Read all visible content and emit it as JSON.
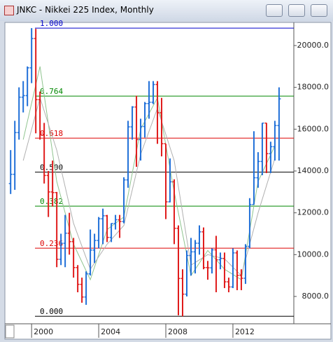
{
  "chart_data": {
    "type": "ohlc",
    "title": "JNKC - Nikkei 225 Index, Monthly",
    "x": [
      1998.75,
      1999.0,
      1999.25,
      1999.5,
      1999.75,
      2000.0,
      2000.25,
      2000.5,
      2000.75,
      2001.0,
      2001.25,
      2001.5,
      2001.75,
      2002.0,
      2002.25,
      2002.5,
      2002.75,
      2003.0,
      2003.25,
      2003.5,
      2003.75,
      2004.0,
      2004.25,
      2004.5,
      2004.75,
      2005.0,
      2005.25,
      2005.5,
      2005.75,
      2006.0,
      2006.25,
      2006.5,
      2006.75,
      2007.0,
      2007.25,
      2007.5,
      2007.75,
      2008.0,
      2008.25,
      2008.5,
      2008.75,
      2009.0,
      2009.25,
      2009.5,
      2009.75,
      2010.0,
      2010.25,
      2010.5,
      2010.75,
      2011.0,
      2011.25,
      2011.5,
      2011.75,
      2012.0,
      2012.25,
      2012.5,
      2012.75,
      2013.0,
      2013.25,
      2013.5,
      2013.75,
      2014.0,
      2014.25,
      2014.5,
      2014.75
    ],
    "open": [
      13400,
      13842,
      15837,
      17530,
      17605,
      18934,
      20337,
      17411,
      15747,
      13786,
      12999,
      12969,
      9775,
      10543,
      11025,
      10622,
      9383,
      8579,
      7973,
      9083,
      10219,
      10677,
      11715,
      11859,
      10824,
      11489,
      11669,
      11584,
      13574,
      16111,
      17060,
      15505,
      16128,
      17226,
      17288,
      18138,
      16786,
      15308,
      12526,
      13482,
      11260,
      8860,
      8110,
      9958,
      10133,
      10546,
      11090,
      9383,
      9369,
      10229,
      9755,
      9816,
      8700,
      8455,
      10083,
      9007,
      8870,
      10395,
      12398,
      13677,
      14456,
      16291,
      14828,
      15162,
      16174
    ],
    "high": [
      15000,
      16400,
      18000,
      18300,
      19000,
      20833,
      20800,
      17800,
      16300,
      14000,
      14500,
      13000,
      11000,
      11900,
      12000,
      10800,
      9500,
      8900,
      9200,
      11200,
      11000,
      11800,
      12200,
      11900,
      11500,
      11900,
      11900,
      13700,
      16400,
      17100,
      17600,
      16500,
      17300,
      18300,
      18300,
      18300,
      17500,
      15300,
      14600,
      13600,
      11400,
      9300,
      10200,
      10800,
      10700,
      11400,
      11300,
      9700,
      10300,
      10900,
      10100,
      10100,
      8900,
      10300,
      10200,
      9300,
      10500,
      12700,
      15900,
      14900,
      16300,
      16300,
      15400,
      16400,
      18000
    ],
    "low": [
      12900,
      13100,
      15500,
      16800,
      17100,
      18200,
      15800,
      15500,
      13400,
      11800,
      12300,
      9400,
      9500,
      9400,
      10000,
      8900,
      8200,
      7700,
      7600,
      9000,
      9600,
      10300,
      10500,
      10600,
      10600,
      11200,
      10800,
      11500,
      13200,
      15500,
      14200,
      14500,
      15600,
      16500,
      17200,
      15300,
      14700,
      11700,
      12500,
      10500,
      7100,
      7055,
      8000,
      9000,
      9100,
      10000,
      9300,
      8800,
      9100,
      8200,
      9300,
      8400,
      8200,
      8400,
      8300,
      8300,
      8600,
      10300,
      12400,
      13200,
      13800,
      13900,
      13900,
      14500,
      14500
    ],
    "close": [
      13842,
      15837,
      17530,
      17605,
      18934,
      20337,
      17411,
      15747,
      13786,
      12999,
      12969,
      9775,
      10543,
      11025,
      10622,
      9383,
      8579,
      7973,
      9083,
      10219,
      10677,
      11715,
      11859,
      10824,
      11489,
      11669,
      11584,
      13574,
      16111,
      17060,
      15505,
      16128,
      17226,
      17288,
      18138,
      16786,
      15308,
      12526,
      13482,
      11260,
      8860,
      8110,
      9958,
      10133,
      10546,
      11090,
      9383,
      9369,
      10229,
      9755,
      9816,
      8700,
      8455,
      10083,
      9007,
      8870,
      10395,
      12398,
      13677,
      14456,
      16291,
      14828,
      15162,
      16174,
      17451
    ],
    "up_color": "#1f6fd8",
    "down_color": "#e01b1b",
    "xlim": [
      1998.45,
      2015.63
    ],
    "xticks": [
      2000,
      2004,
      2008,
      2012
    ],
    "ylim": [
      6693,
      21072
    ],
    "yticks": [
      {
        "value": 8000,
        "label": "8000.0"
      },
      {
        "value": 10000,
        "label": "10000.0"
      },
      {
        "value": 12000,
        "label": "12000.0"
      },
      {
        "value": 14000,
        "label": "14000.0"
      },
      {
        "value": 16000,
        "label": "16000.0"
      },
      {
        "value": 18000,
        "label": "18000.0"
      },
      {
        "value": 20000,
        "label": "20000.0"
      }
    ],
    "fib_levels": [
      {
        "label": "1.000",
        "price": 20833,
        "color": "#0000cc"
      },
      {
        "label": "0.764",
        "price": 17582,
        "color": "#008800"
      },
      {
        "label": "0.618",
        "price": 15570,
        "color": "#dd0000"
      },
      {
        "label": "0.500",
        "price": 13944,
        "color": "#000000"
      },
      {
        "label": "0.382",
        "price": 12318,
        "color": "#008800"
      },
      {
        "label": "0.236",
        "price": 10307,
        "color": "#dd0000"
      },
      {
        "label": "0.000",
        "price": 7055,
        "color": "#000000"
      }
    ],
    "moving_averages": [
      {
        "color": "#8fc48f",
        "x": [
          1999.5,
          2000.5,
          2001.5,
          2002.5,
          2003.5,
          2004.5,
          2005.5,
          2006.5,
          2007.5,
          2008.5,
          2009.5,
          2010.5,
          2011.5,
          2012.5,
          2013.5,
          2014.5
        ],
        "values": [
          15500,
          19000,
          13500,
          10500,
          8800,
          11200,
          11800,
          16000,
          17500,
          13000,
          9000,
          10200,
          9300,
          8800,
          13500,
          15200
        ]
      },
      {
        "color": "#b0b0b0",
        "x": [
          1999.5,
          2000.5,
          2001.5,
          2002.5,
          2003.5,
          2004.5,
          2005.5,
          2006.5,
          2007.5,
          2008.5,
          2009.5,
          2010.5,
          2011.5,
          2012.5,
          2013.5,
          2014.5
        ],
        "values": [
          14500,
          17500,
          15000,
          11500,
          9300,
          10500,
          11400,
          14800,
          17000,
          14500,
          9500,
          10000,
          9800,
          9000,
          12000,
          14600
        ]
      }
    ]
  }
}
